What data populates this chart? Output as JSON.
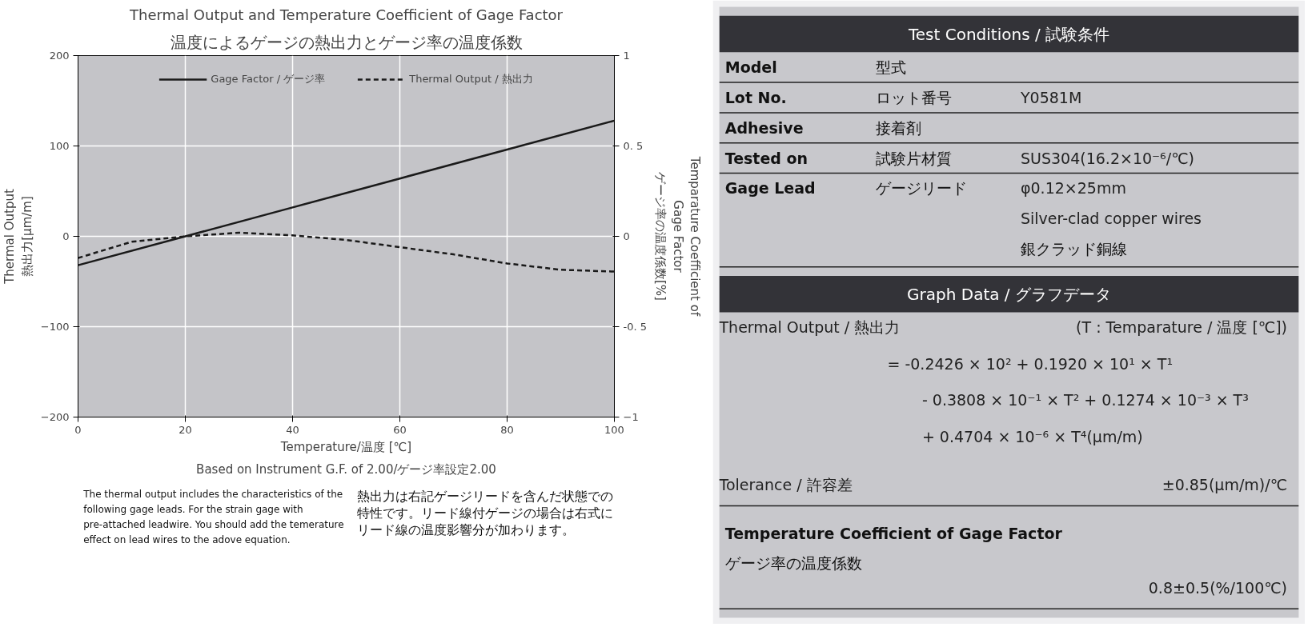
{
  "chart_data": [
    {
      "type": "line",
      "title": "Thermal Output and Temperature Coefficient of Gage Factor",
      "subtitle": "温度によるゲージの熱出力とゲージ率の温度係数",
      "xlabel": "Temperature/温度 [℃]",
      "ylabel": "Thermal Output\n熱出力[μm/m]",
      "y2label": "Temparature Coefficient of\nGage Factor\nゲージ率の温度係数[%]",
      "xlim": [
        0,
        100
      ],
      "xticks": [
        0,
        20,
        40,
        60,
        80,
        100
      ],
      "ylim": [
        -200,
        200
      ],
      "yticks": [
        -200,
        -100,
        0,
        100,
        200
      ],
      "y2lim": [
        -1,
        1
      ],
      "y2ticks": [
        -1,
        {
          "value": -0.5,
          "label": "-0. 5"
        },
        0,
        {
          "value": 0.5,
          "label": "0. 5"
        },
        1
      ],
      "grid": true,
      "legend": "top",
      "series": [
        {
          "name": "Gage Factor / ゲージ率",
          "color": "#1a1a1a",
          "axis": "y2",
          "line_style": "solid",
          "x": [
            0,
            20,
            40,
            60,
            80,
            100
          ],
          "values": [
            -0.16,
            0,
            0.16,
            0.32,
            0.48,
            0.64
          ]
        },
        {
          "name": "Thermal Output / 熱出力",
          "color": "#1a1a1a",
          "line_style": "dashed",
          "x": [
            0,
            10,
            20,
            30,
            40,
            50,
            60,
            70,
            80,
            90,
            100
          ],
          "values": [
            -24,
            -6,
            0,
            4,
            1,
            -4,
            -12,
            -20,
            -30,
            -37,
            -39
          ]
        }
      ],
      "annotations": [
        "Based on Instrument G.F. of 2.00/ゲージ率設定2.00",
        "The thermal output includes the characteristics of the\nfollowing gage leads. For the strain gage with\npre-attached leadwire. You should add the temerature\neffect on lead wires to the adove equation.",
        "熱出力は右記ゲージリードを含んだ状態での特性です。リード線付ゲージの場合は右式にリード線の温度影響分が加わります。"
      ]
    },
    {
      "type": "other",
      "annotations": [
        "Test Conditions / 試験条件",
        "Model",
        "型式",
        "Lot No.",
        "ロット番号",
        "Y0581M",
        "Adhesive",
        "接着剤",
        "Tested on",
        "試験片材質",
        "SUS304(16.2×10⁻⁶/℃)",
        "Gage Lead",
        "ゲージリード",
        "φ0.12×25mm",
        "Silver-clad copper wires",
        "銀クラッド銅線",
        "Graph Data / グラフデータ",
        "Thermal Output / 熱出力",
        "(T : Temparature / 温度 [℃])",
        "= -0.2426 × 10² + 0.1920 × 10¹ × T¹",
        "- 0.3808 × 10⁻¹ × T² + 0.1274 × 10⁻³ × T³",
        "+ 0.4704 × 10⁻⁶ × T⁴(μm/m)",
        "Tolerance / 許容差",
        "±0.85(μm/m)/℃",
        "Temperature Coefficient of Gage Factor",
        "ゲージ率の温度係数",
        "0.8±0.5(%/100℃)"
      ]
    }
  ]
}
